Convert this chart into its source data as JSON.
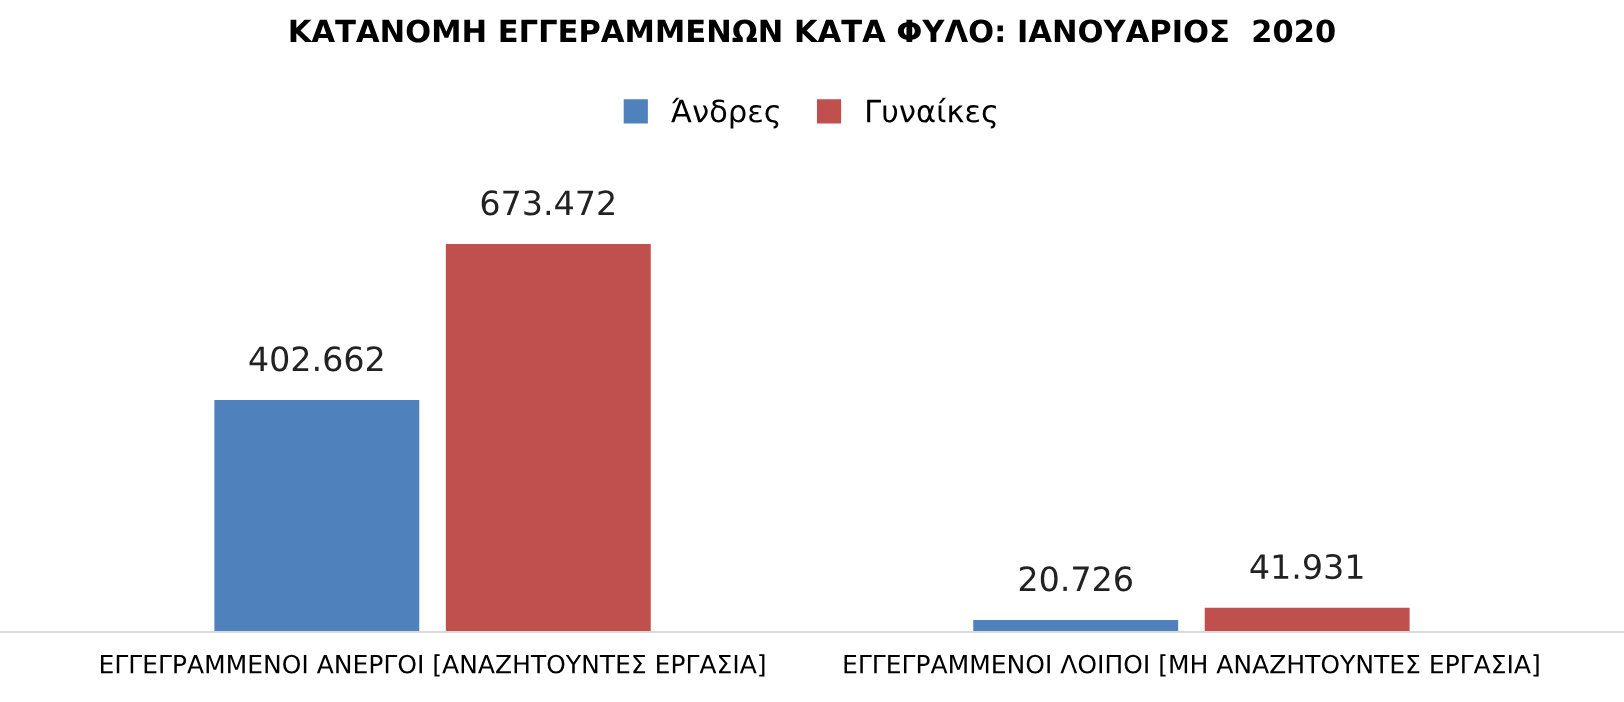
{
  "chart_data": {
    "type": "bar",
    "title": "ΚΑΤΑΝΟΜΗ ΕΓΓΕΡΑΜΜΕΝΩΝ ΚΑΤΑ ΦΥΛΟ: ΙΑΝΟΥΑΡΙΟΣ  2020",
    "categories": [
      "ΕΓΓΕΓΡΑΜΜΕΝΟΙ ΑΝΕΡΓΟΙ [ΑΝΑΖΗΤΟΥΝΤΕΣ ΕΡΓΑΣΙΑ]",
      "ΕΓΓΕΓΡΑΜΜΕΝΟΙ ΛΟΙΠΟΙ [ΜΗ ΑΝΑΖΗΤΟΥΝΤΕΣ ΕΡΓΑΣΙΑ]"
    ],
    "series": [
      {
        "name": "Άνδρες",
        "color": "#4f81bd",
        "values": [
          402662,
          20726
        ],
        "value_labels": [
          "402.662",
          "20.726"
        ]
      },
      {
        "name": "Γυναίκες",
        "color": "#c0504d",
        "values": [
          673472,
          41931
        ],
        "value_labels": [
          "673.472",
          "41.931"
        ]
      }
    ],
    "legend": "top",
    "grid": false
  }
}
